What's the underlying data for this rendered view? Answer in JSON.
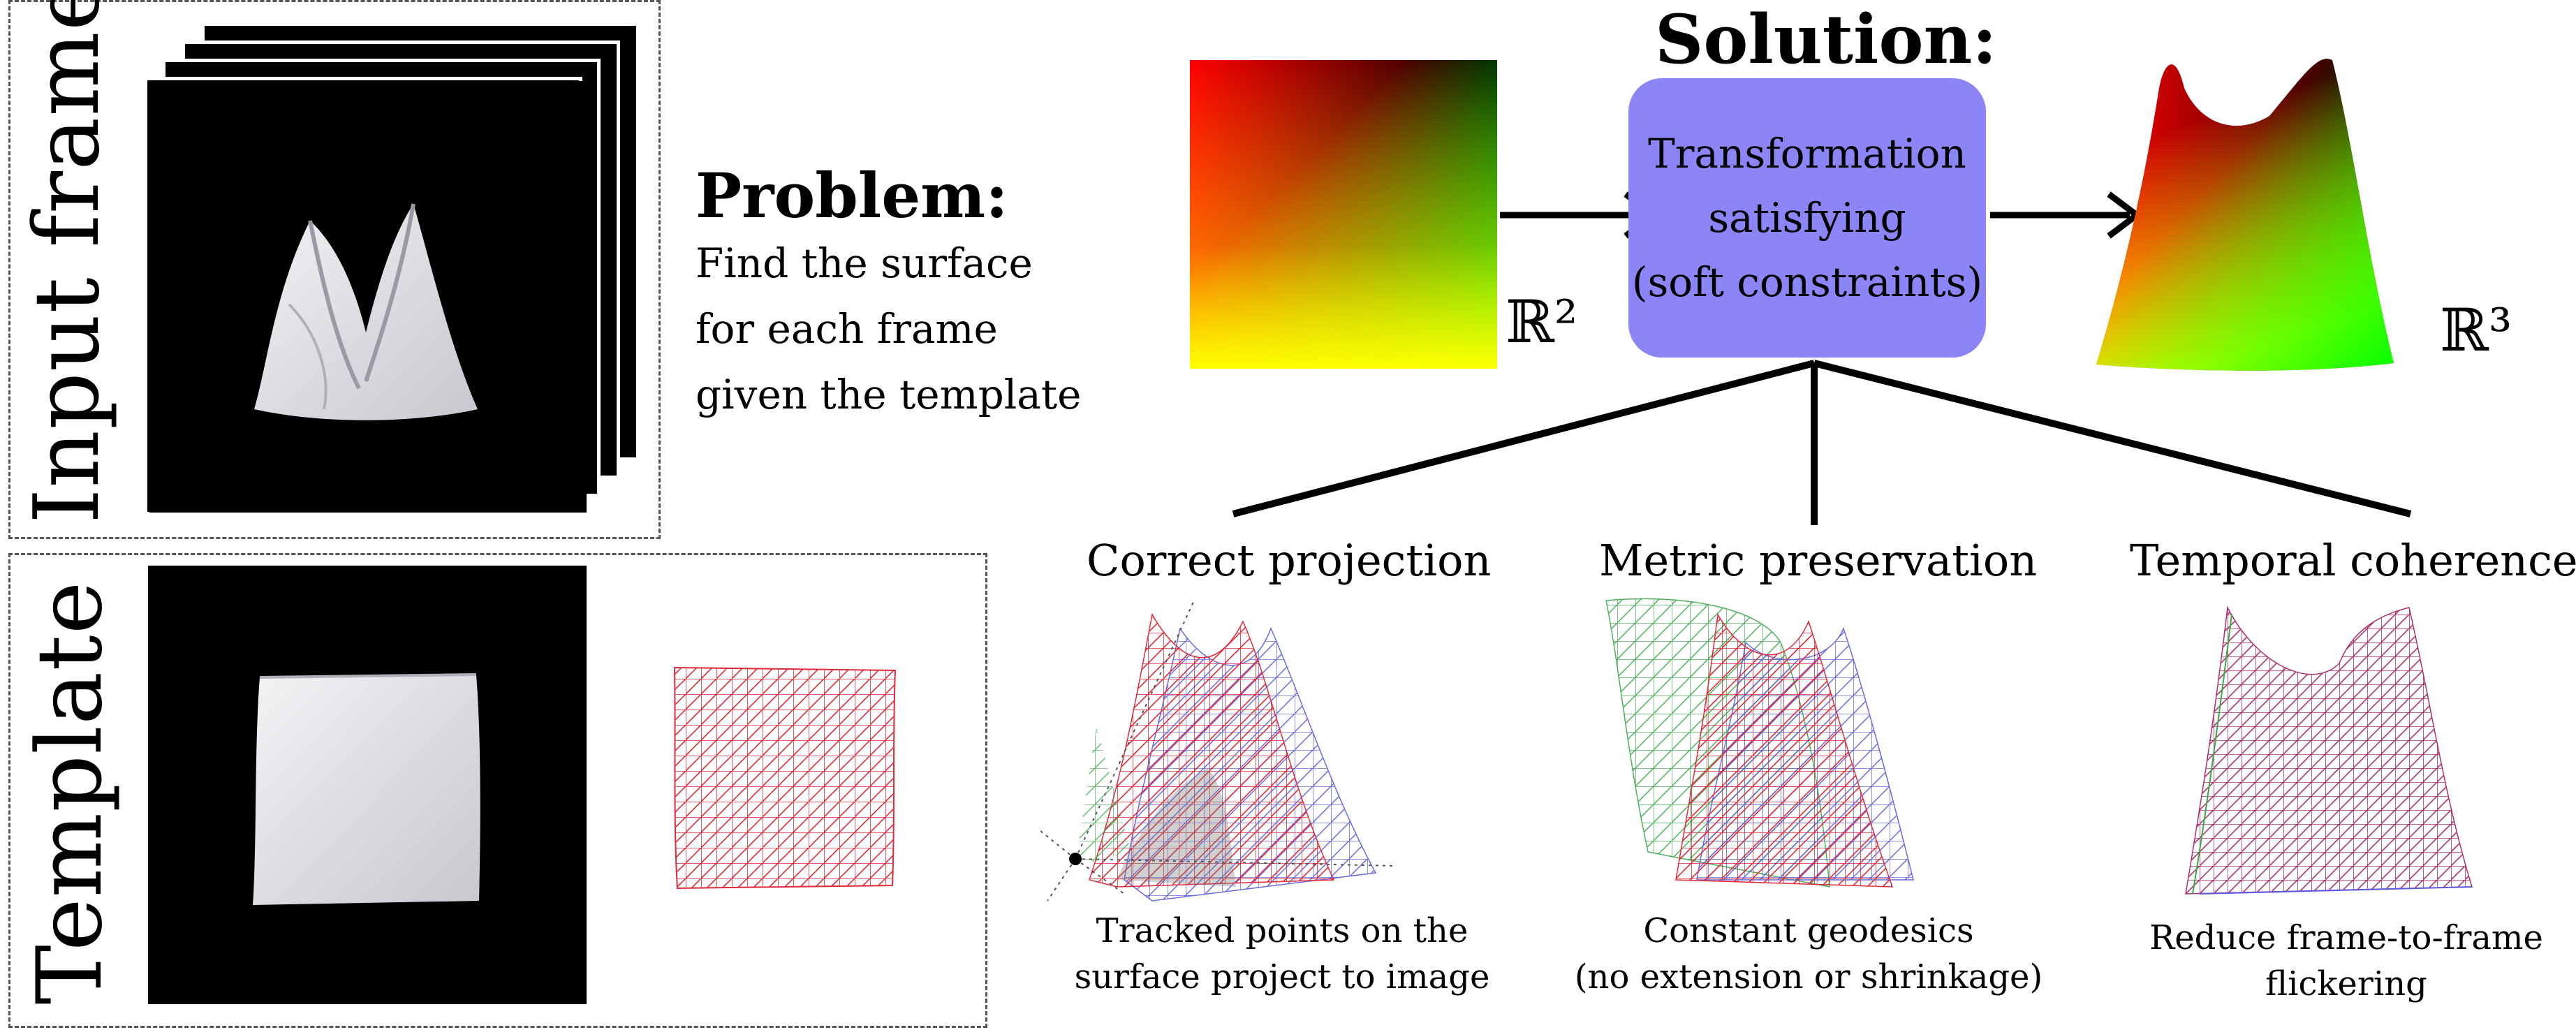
{
  "input_frames": {
    "label": "Input frames"
  },
  "template": {
    "label": "Template"
  },
  "problem": {
    "title": "Problem:",
    "lines": [
      "Find the surface",
      "for each frame",
      "given the template"
    ]
  },
  "solution": {
    "title": "Solution:",
    "box_lines": [
      "Transformation",
      "satisfying",
      "(soft constraints)"
    ],
    "domain_label": "ℝ²",
    "codomain_label": "ℝ³"
  },
  "constraints": [
    {
      "title": "Correct projection",
      "caption": [
        "Tracked points on the",
        "surface project to image"
      ]
    },
    {
      "title": "Metric preservation",
      "caption": [
        "Constant geodesics",
        "(no extension or shrinkage)"
      ]
    },
    {
      "title": "Temporal coherence",
      "caption": [
        "Reduce frame-to-frame",
        "flickering"
      ]
    }
  ],
  "colors": {
    "solution_box": "#8b85f7",
    "mesh_red": "#e02a3a",
    "mesh_blue": "#5a5ae0",
    "mesh_green": "#3aa84a"
  }
}
